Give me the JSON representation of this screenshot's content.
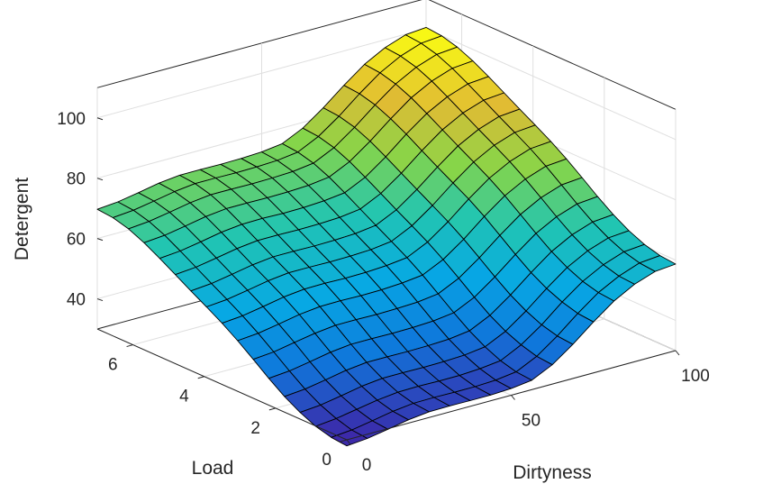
{
  "chart_data": {
    "type": "surface",
    "title": "",
    "xlabel": "Dirtyness",
    "ylabel": "Load",
    "zlabel": "Detergent",
    "xlim": [
      0,
      100
    ],
    "ylim": [
      0,
      7
    ],
    "zlim": [
      30,
      110
    ],
    "xticks": [
      0,
      50,
      100
    ],
    "yticks": [
      0,
      2,
      4,
      6
    ],
    "zticks": [
      40,
      60,
      80,
      100
    ],
    "xtick_labels": [
      "0",
      "50",
      "100"
    ],
    "ytick_labels": [
      "0",
      "2",
      "4",
      "6"
    ],
    "ztick_labels": [
      "40",
      "60",
      "80",
      "100"
    ],
    "grid": true,
    "colormap": "parula",
    "x": [
      0,
      6.25,
      12.5,
      18.75,
      25,
      31.25,
      37.5,
      43.75,
      50,
      56.25,
      62.5,
      68.75,
      75,
      81.25,
      87.5,
      93.75,
      100
    ],
    "y": [
      0,
      0.4375,
      0.875,
      1.3125,
      1.75,
      2.1875,
      2.625,
      3.0625,
      3.5,
      3.9375,
      4.375,
      4.8125,
      5.25,
      5.6875,
      6.125,
      6.5625,
      7
    ],
    "z": [
      [
        28.0,
        28.6,
        29.8,
        31.1,
        31.9,
        32.0,
        31.9,
        31.9,
        32.2,
        33.1,
        36.4,
        41.3,
        46.9,
        52.0,
        55.7,
        58.1,
        58.7
      ],
      [
        28.5,
        29.1,
        30.3,
        31.6,
        32.4,
        32.5,
        32.4,
        32.4,
        32.7,
        33.6,
        36.9,
        41.8,
        47.4,
        52.5,
        56.1,
        58.6,
        59.2
      ],
      [
        29.9,
        30.6,
        31.8,
        33.0,
        33.8,
        33.9,
        33.8,
        33.8,
        34.2,
        35.0,
        38.4,
        43.2,
        48.9,
        53.9,
        57.6,
        60.0,
        60.6
      ],
      [
        32.2,
        32.8,
        34.0,
        35.3,
        36.1,
        36.1,
        36.0,
        36.1,
        36.4,
        37.3,
        40.6,
        45.5,
        51.1,
        56.2,
        59.9,
        62.3,
        62.9
      ],
      [
        35.2,
        35.8,
        37.0,
        38.3,
        39.1,
        39.1,
        39.0,
        39.1,
        39.4,
        40.3,
        43.6,
        48.5,
        54.1,
        59.2,
        62.9,
        65.3,
        65.9
      ],
      [
        38.9,
        39.5,
        40.7,
        42.0,
        42.8,
        42.8,
        42.7,
        42.8,
        43.1,
        44.0,
        47.3,
        52.2,
        57.8,
        62.9,
        66.6,
        69.0,
        69.6
      ],
      [
        42.9,
        43.5,
        44.8,
        46.0,
        46.8,
        46.8,
        46.7,
        46.8,
        47.1,
        48.0,
        51.3,
        56.2,
        61.8,
        66.9,
        70.6,
        73.0,
        73.6
      ],
      [
        46.8,
        47.4,
        48.6,
        49.9,
        50.7,
        50.8,
        50.6,
        50.7,
        51.1,
        51.9,
        55.2,
        60.1,
        65.8,
        70.8,
        74.5,
        76.9,
        77.5
      ],
      [
        50.3,
        50.9,
        52.1,
        53.4,
        54.2,
        54.3,
        54.1,
        54.2,
        54.6,
        55.4,
        58.7,
        63.6,
        69.3,
        74.3,
        78.0,
        80.4,
        81.0
      ],
      [
        53.4,
        54.0,
        55.2,
        56.5,
        57.3,
        57.3,
        57.2,
        57.3,
        57.6,
        58.5,
        61.8,
        66.7,
        72.3,
        77.4,
        81.1,
        83.5,
        84.1
      ],
      [
        56.4,
        57.0,
        58.2,
        59.5,
        60.3,
        60.3,
        60.2,
        60.3,
        60.6,
        61.5,
        64.8,
        69.7,
        75.3,
        80.4,
        84.1,
        86.5,
        87.1
      ],
      [
        59.5,
        60.1,
        61.3,
        62.6,
        63.4,
        63.4,
        63.3,
        63.4,
        63.7,
        64.6,
        67.9,
        72.8,
        78.4,
        83.5,
        87.2,
        89.6,
        90.2
      ],
      [
        62.6,
        63.2,
        64.4,
        65.7,
        66.5,
        66.6,
        66.4,
        66.5,
        66.9,
        67.7,
        71.0,
        75.9,
        81.6,
        86.6,
        90.3,
        92.7,
        93.3
      ],
      [
        65.5,
        66.1,
        67.3,
        68.6,
        69.4,
        69.4,
        69.3,
        69.4,
        69.7,
        70.6,
        73.9,
        78.8,
        84.4,
        89.5,
        93.2,
        95.6,
        96.2
      ],
      [
        67.8,
        68.4,
        69.6,
        70.9,
        71.7,
        71.7,
        71.6,
        71.7,
        72.0,
        72.9,
        76.2,
        81.1,
        86.7,
        91.8,
        95.5,
        97.9,
        98.5
      ],
      [
        69.2,
        69.8,
        71.0,
        72.3,
        73.1,
        73.1,
        73.0,
        73.1,
        73.4,
        74.3,
        77.6,
        82.5,
        88.1,
        93.2,
        96.9,
        99.3,
        99.9
      ],
      [
        69.7,
        70.3,
        71.5,
        72.8,
        73.6,
        73.6,
        73.5,
        73.6,
        73.9,
        74.8,
        78.1,
        83.0,
        88.6,
        93.7,
        97.4,
        99.8,
        100.4
      ]
    ]
  },
  "colors": {
    "background": "#ffffff",
    "axis_line": "#262626",
    "grid_line": "#dfdfdf",
    "mesh_edge": "#000000",
    "colormap_stops": [
      "#3e26a8",
      "#0f77db",
      "#07a8e4",
      "#21c5b2",
      "#86d549",
      "#e1bc33",
      "#f9fb14"
    ]
  }
}
